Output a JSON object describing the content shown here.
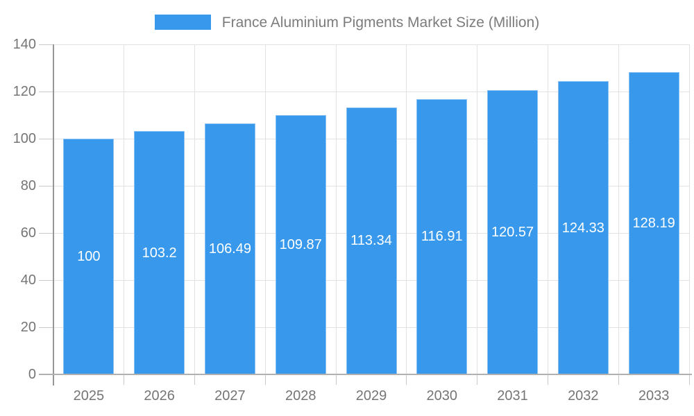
{
  "chart_data": {
    "type": "bar",
    "title": "France Aluminium Pigments Market Size (Million)",
    "legend": [
      {
        "label": "France Aluminium Pigments Market Size (Million)"
      }
    ],
    "legend_position": "top",
    "categories": [
      "2025",
      "2026",
      "2027",
      "2028",
      "2029",
      "2030",
      "2031",
      "2032",
      "2033"
    ],
    "series": [
      {
        "name": "France Aluminium Pigments Market Size (Million)",
        "values": [
          100,
          103.2,
          106.49,
          109.87,
          113.34,
          116.91,
          120.57,
          124.33,
          128.19
        ],
        "value_labels": [
          "100",
          "103.2",
          "106.49",
          "109.87",
          "113.34",
          "116.91",
          "120.57",
          "124.33",
          "128.19"
        ]
      }
    ],
    "xlabel": "",
    "ylabel": "",
    "ylim": [
      0,
      140
    ],
    "yticks": [
      0,
      20,
      40,
      60,
      80,
      100,
      120,
      140
    ],
    "grid": true,
    "colors": {
      "bar": "#3899ec",
      "bar_border": "#8cc1f2",
      "value_label_text": "#ffffff",
      "gridline": "#e2e2e2",
      "y_axis_line": "#969696",
      "x_axis_line": "#b0b0b0",
      "tick_mark": "#c9c9c9",
      "axis_text": "#757575",
      "legend_text": "#7c7c7c",
      "background": "#ffffff"
    }
  }
}
